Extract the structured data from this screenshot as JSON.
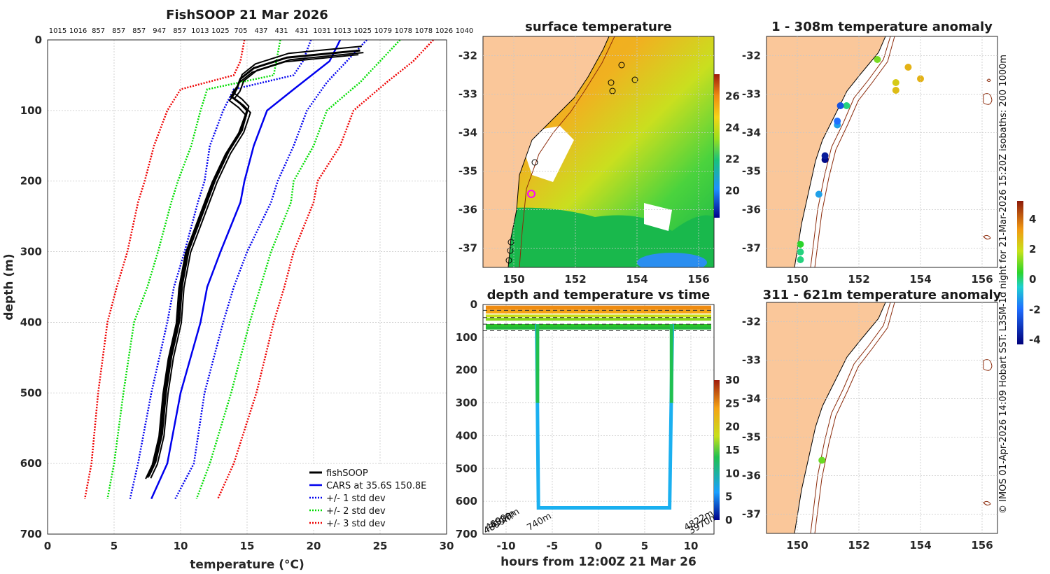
{
  "chart_data": [
    {
      "type": "line",
      "title": "FishSOOP 21 Mar 2026",
      "xlabel": "temperature (°C)",
      "ylabel": "depth (m)",
      "xlim": [
        0,
        30
      ],
      "ylim": [
        700,
        0
      ],
      "xticks": [
        0,
        5,
        10,
        15,
        20,
        25,
        30
      ],
      "yticks": [
        0,
        100,
        200,
        300,
        400,
        500,
        600,
        700
      ],
      "top_labels": [
        "1015",
        "1016",
        "857",
        "857",
        "857",
        "947",
        "857",
        "1013",
        "1025",
        "705",
        "437",
        "431",
        "431",
        "1031",
        "1013",
        "1025",
        "1079",
        "1078",
        "1078",
        "1026",
        "1040"
      ],
      "legend": [
        "fishSOOP",
        "CARS at 35.6S 150.8E",
        "+/- 1 std dev",
        "+/- 2 std dev",
        "+/- 3 std dev"
      ],
      "series": [
        {
          "name": "CARS at 35.6S 150.8E",
          "color": "#0000ee",
          "style": "solid",
          "points": [
            [
              22,
              0
            ],
            [
              21.2,
              30
            ],
            [
              18.5,
              70
            ],
            [
              16.5,
              100
            ],
            [
              15.5,
              150
            ],
            [
              14.8,
              200
            ],
            [
              14.5,
              230
            ],
            [
              13,
              300
            ],
            [
              12,
              350
            ],
            [
              11.5,
              400
            ],
            [
              10,
              500
            ],
            [
              9,
              600
            ],
            [
              7.8,
              650
            ]
          ]
        },
        {
          "name": "+1 std dev",
          "color": "#0000ee",
          "style": "dotted",
          "points": [
            [
              19.8,
              0
            ],
            [
              19.2,
              30
            ],
            [
              18.5,
              50
            ],
            [
              14,
              70
            ],
            [
              13.2,
              100
            ],
            [
              12.2,
              150
            ],
            [
              11.8,
              200
            ],
            [
              11.3,
              230
            ],
            [
              10.3,
              300
            ],
            [
              9.5,
              350
            ],
            [
              9,
              400
            ],
            [
              7.8,
              500
            ],
            [
              6.8,
              600
            ],
            [
              6.2,
              650
            ]
          ]
        },
        {
          "name": "-1 std dev",
          "color": "#0000ee",
          "style": "dotted",
          "points": [
            [
              24,
              0
            ],
            [
              22.5,
              30
            ],
            [
              21,
              60
            ],
            [
              19.5,
              100
            ],
            [
              18.5,
              150
            ],
            [
              17.3,
              200
            ],
            [
              16.8,
              230
            ],
            [
              15,
              300
            ],
            [
              14,
              350
            ],
            [
              13.2,
              400
            ],
            [
              11.8,
              500
            ],
            [
              11,
              600
            ],
            [
              9.6,
              650
            ]
          ]
        },
        {
          "name": "+2 std dev",
          "color": "#00dd00",
          "style": "dotted",
          "points": [
            [
              17.5,
              0
            ],
            [
              17.2,
              30
            ],
            [
              17,
              50
            ],
            [
              12,
              70
            ],
            [
              11.5,
              100
            ],
            [
              10.8,
              150
            ],
            [
              9.8,
              200
            ],
            [
              9.3,
              230
            ],
            [
              8.3,
              300
            ],
            [
              7.5,
              350
            ],
            [
              6.5,
              400
            ],
            [
              5.7,
              500
            ],
            [
              5,
              600
            ],
            [
              4.5,
              650
            ]
          ]
        },
        {
          "name": "-2 std dev",
          "color": "#00dd00",
          "style": "dotted",
          "points": [
            [
              26.5,
              0
            ],
            [
              25,
              30
            ],
            [
              23.5,
              60
            ],
            [
              21,
              100
            ],
            [
              20,
              150
            ],
            [
              18.5,
              200
            ],
            [
              18.3,
              230
            ],
            [
              16.8,
              300
            ],
            [
              16,
              350
            ],
            [
              15.2,
              400
            ],
            [
              13.8,
              500
            ],
            [
              12.2,
              600
            ],
            [
              11.2,
              650
            ]
          ]
        },
        {
          "name": "+3 std dev",
          "color": "#ee0000",
          "style": "dotted",
          "points": [
            [
              14.8,
              0
            ],
            [
              14.5,
              30
            ],
            [
              14,
              50
            ],
            [
              10,
              70
            ],
            [
              9,
              100
            ],
            [
              8,
              150
            ],
            [
              7.3,
              200
            ],
            [
              6.8,
              230
            ],
            [
              6,
              300
            ],
            [
              5.2,
              350
            ],
            [
              4.5,
              400
            ],
            [
              3.8,
              500
            ],
            [
              3.3,
              600
            ],
            [
              2.8,
              650
            ]
          ]
        },
        {
          "name": "-3 std dev",
          "color": "#ee0000",
          "style": "dotted",
          "points": [
            [
              29,
              0
            ],
            [
              27.5,
              30
            ],
            [
              25.5,
              60
            ],
            [
              23,
              100
            ],
            [
              22,
              150
            ],
            [
              20.3,
              200
            ],
            [
              20,
              230
            ],
            [
              18.5,
              300
            ],
            [
              17.8,
              350
            ],
            [
              17,
              400
            ],
            [
              15.7,
              500
            ],
            [
              14,
              600
            ],
            [
              12.8,
              650
            ]
          ]
        },
        {
          "name": "fishSOOP",
          "color": "#000000",
          "style": "solid",
          "points": [
            [
              23.5,
              15
            ],
            [
              18,
              25
            ],
            [
              15.5,
              40
            ],
            [
              14.5,
              55
            ],
            [
              14.2,
              70
            ],
            [
              13.8,
              80
            ],
            [
              14.5,
              90
            ],
            [
              15,
              100
            ],
            [
              14.5,
              130
            ],
            [
              13.5,
              160
            ],
            [
              12.5,
              200
            ],
            [
              11.5,
              250
            ],
            [
              10.5,
              300
            ],
            [
              10,
              350
            ],
            [
              9.8,
              400
            ],
            [
              9.2,
              450
            ],
            [
              8.8,
              500
            ],
            [
              8.5,
              560
            ],
            [
              8,
              600
            ],
            [
              7.5,
              620
            ]
          ]
        }
      ]
    },
    {
      "type": "heatmap",
      "title": "surface temperature",
      "xticks": [
        150,
        152,
        154,
        156
      ],
      "yticks": [
        -32,
        -33,
        -34,
        -35,
        -36,
        -37
      ],
      "xlim": [
        149,
        156.5
      ],
      "ylim": [
        -37.5,
        -31.5
      ],
      "colorbar_ticks": [
        20,
        22,
        24,
        26
      ]
    },
    {
      "type": "line",
      "title": "depth and temperature vs time",
      "xlabel": "hours from 12:00Z 21 Mar 26",
      "xticks": [
        -10,
        -5,
        0,
        5,
        10
      ],
      "yticks": [
        0,
        100,
        200,
        300,
        400,
        500,
        600,
        700
      ],
      "xlim": [
        -12.5,
        12.5
      ],
      "ylim": [
        700,
        0
      ],
      "colorbar_ticks": [
        0,
        5,
        10,
        15,
        20,
        25,
        30
      ],
      "annotations": [
        "4899m",
        "4890m",
        "4530m",
        "740m",
        "4822m",
        "3970m"
      ],
      "series": [
        {
          "name": "deep cast",
          "points": [
            [
              -6.7,
              60
            ],
            [
              -6.5,
              620
            ],
            [
              7.7,
              620
            ],
            [
              8,
              60
            ]
          ]
        }
      ]
    },
    {
      "type": "scatter",
      "title": "1 - 308m temperature anomaly",
      "xticks": [
        150,
        152,
        154,
        156
      ],
      "yticks": [
        -32,
        -33,
        -34,
        -35,
        -36,
        -37
      ],
      "xlim": [
        149,
        156.5
      ],
      "ylim": [
        -37.5,
        -31.5
      ],
      "colorbar_ticks": [
        -4,
        -2,
        0,
        2,
        4
      ],
      "points": [
        [
          152.6,
          -32.1,
          1.0
        ],
        [
          153.6,
          -32.3,
          3.0
        ],
        [
          154.0,
          -32.6,
          3.0
        ],
        [
          153.2,
          -32.7,
          2.5
        ],
        [
          153.2,
          -32.9,
          2.8
        ],
        [
          151.6,
          -33.3,
          -0.5
        ],
        [
          151.4,
          -33.3,
          -2.5
        ],
        [
          151.3,
          -33.8,
          -1.5
        ],
        [
          151.3,
          -33.7,
          -2.0
        ],
        [
          150.9,
          -34.7,
          -3.8
        ],
        [
          150.9,
          -34.6,
          -3.5
        ],
        [
          150.7,
          -35.6,
          -1.5
        ],
        [
          150.1,
          -36.9,
          0.0
        ],
        [
          150.1,
          -37.1,
          -0.5
        ],
        [
          150.1,
          -37.3,
          -0.5
        ]
      ]
    },
    {
      "type": "scatter",
      "title": "311 - 621m temperature anomaly",
      "xticks": [
        150,
        152,
        154,
        156
      ],
      "yticks": [
        -32,
        -33,
        -34,
        -35,
        -36,
        -37
      ],
      "xlim": [
        149,
        156.5
      ],
      "ylim": [
        -37.5,
        -31.5
      ],
      "points": [
        [
          150.8,
          -35.6,
          0.8
        ]
      ]
    }
  ],
  "side_text": "© IMOS 01-Apr-2026 14:09 Hobart SST: L3SM-1d night for 21-Mar-2026 15:20Z isobaths: 200  1000m",
  "colors": {
    "land": "#fac79a",
    "black": "#000000"
  }
}
